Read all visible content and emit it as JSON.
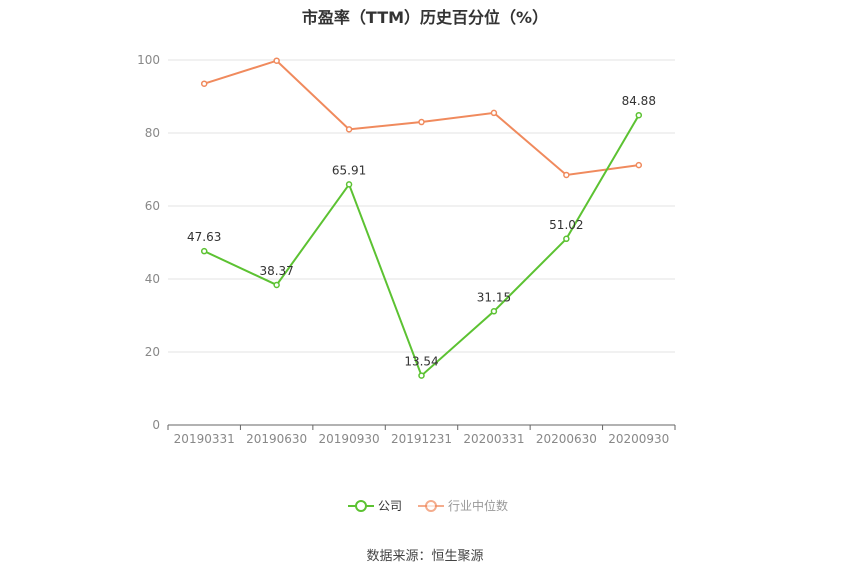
{
  "chart_data": {
    "type": "line",
    "title": "市盈率（TTM）历史百分位（%）",
    "source": "数据来源：恒生聚源",
    "categories": [
      "20190331",
      "20190630",
      "20190930",
      "20191231",
      "20200331",
      "20200630",
      "20200930"
    ],
    "ylim": [
      0,
      100
    ],
    "yticks": [
      0,
      20,
      40,
      60,
      80,
      100
    ],
    "grid": true,
    "legend_position": "bottom-center",
    "series": [
      {
        "name": "公司",
        "color": "#5cc232",
        "values": [
          47.63,
          38.37,
          65.91,
          13.54,
          31.15,
          51.02,
          84.88
        ],
        "labels": [
          "47.63",
          "38.37",
          "65.91",
          "13.54",
          "31.15",
          "51.02",
          "84.88"
        ]
      },
      {
        "name": "行业中位数",
        "color": "#f08a5d",
        "values": [
          93.5,
          99.8,
          81.0,
          83.0,
          85.5,
          68.5,
          71.2
        ]
      }
    ]
  }
}
